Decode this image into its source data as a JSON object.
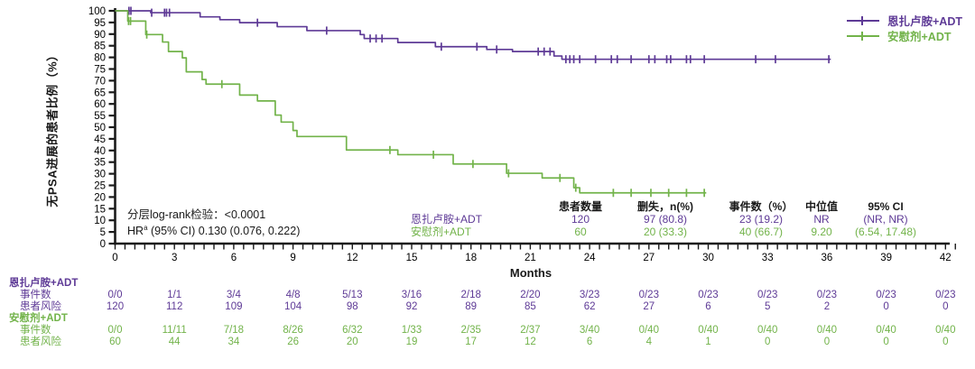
{
  "chart_data": {
    "type": "line",
    "subtype": "kaplan-meier-step",
    "title": "",
    "xlabel": "Months",
    "ylabel": "无PSA进展的患者比例（%）",
    "xlim": [
      0,
      42.5
    ],
    "ylim": [
      0,
      100
    ],
    "xtick_label_step": 3,
    "xtick_minor_step": 0.5,
    "ytick_step": 5,
    "grid": false,
    "legend_position": "top-right",
    "axis_color": "#1a1a1a",
    "series": [
      {
        "name": "恩扎卢胺+ADT",
        "color": "#5e3a96",
        "steps": [
          [
            0,
            100
          ],
          [
            1.8,
            99.2
          ],
          [
            4.3,
            97.4
          ],
          [
            5.3,
            96.2
          ],
          [
            6.3,
            94.9
          ],
          [
            8.2,
            93.2
          ],
          [
            9.7,
            91.5
          ],
          [
            12.4,
            89.8
          ],
          [
            12.6,
            88.1
          ],
          [
            14.3,
            86.4
          ],
          [
            16.2,
            84.6
          ],
          [
            18.8,
            83.4
          ],
          [
            20.1,
            82.5
          ],
          [
            22.2,
            80.6
          ],
          [
            22.6,
            79.2
          ],
          [
            36.2,
            79.2
          ]
        ],
        "censor_months": [
          0.7,
          0.8,
          1.85,
          2.5,
          2.6,
          2.75,
          7.2,
          10.7,
          12.9,
          13.2,
          13.5,
          16.5,
          18.3,
          19.3,
          21.4,
          21.7,
          22.0,
          22.8,
          23.0,
          23.2,
          23.5,
          24.3,
          25.1,
          25.4,
          26.1,
          27.0,
          27.3,
          27.9,
          28.1,
          28.9,
          29.1,
          29.8,
          32.4,
          33.4,
          36.1
        ]
      },
      {
        "name": "安慰剂+ADT",
        "color": "#72b34a",
        "steps": [
          [
            0,
            100
          ],
          [
            0.64,
            95.6
          ],
          [
            1.55,
            89.8
          ],
          [
            2.4,
            86.6
          ],
          [
            2.7,
            82.5
          ],
          [
            3.4,
            79.8
          ],
          [
            3.6,
            73.8
          ],
          [
            4.4,
            70.5
          ],
          [
            4.6,
            68.5
          ],
          [
            6.3,
            63.8
          ],
          [
            7.2,
            61.3
          ],
          [
            8.1,
            55.2
          ],
          [
            8.4,
            52.2
          ],
          [
            9.0,
            48.6
          ],
          [
            9.2,
            46.0
          ],
          [
            11.7,
            40.2
          ],
          [
            14.3,
            38.2
          ],
          [
            17.1,
            34.2
          ],
          [
            19.8,
            30.2
          ],
          [
            21.6,
            28.2
          ],
          [
            23.2,
            24.0
          ],
          [
            23.5,
            21.8
          ],
          [
            29.9,
            21.8
          ]
        ],
        "censor_months": [
          0.68,
          0.78,
          1.6,
          5.4,
          13.9,
          16.1,
          18.1,
          19.9,
          22.5,
          23.3,
          25.2,
          26.1,
          27.1,
          28.0,
          28.9,
          29.8
        ]
      }
    ],
    "stats": {
      "line1": "分层log-rank检验：<0.0001",
      "hr_label": "HR",
      "hr_sup": "a",
      "hr_rest": " (95% CI) 0.130 (0.076, 0.222)"
    },
    "summary_table": {
      "headers": [
        "患者数量",
        "删失，n(%)",
        "事件数（%）",
        "中位值",
        "95% CI"
      ],
      "rows": [
        {
          "label": "恩扎卢胺+ADT",
          "color": "#5e3a96",
          "values": [
            "120",
            "97 (80.8)",
            "23 (19.2)",
            "NR",
            "(NR, NR)"
          ]
        },
        {
          "label": "安慰剂+ADT",
          "color": "#72b34a",
          "values": [
            "60",
            "20 (33.3)",
            "40 (66.7)",
            "9.20",
            "(6.54, 17.48)"
          ]
        }
      ]
    },
    "risk_table": {
      "months": [
        0,
        3,
        6,
        9,
        12,
        15,
        18,
        21,
        24,
        27,
        30,
        33,
        36,
        39,
        42
      ],
      "row_labels": [
        "事件数",
        "患者风险"
      ],
      "groups": [
        {
          "name": "恩扎卢胺+ADT",
          "color": "#5e3a96",
          "events": [
            "0/0",
            "1/1",
            "3/4",
            "4/8",
            "5/13",
            "3/16",
            "2/18",
            "2/20",
            "3/23",
            "0/23",
            "0/23",
            "0/23",
            "0/23",
            "0/23",
            "0/23"
          ],
          "at_risk": [
            "120",
            "112",
            "109",
            "104",
            "98",
            "92",
            "89",
            "85",
            "62",
            "27",
            "6",
            "5",
            "2",
            "0",
            "0"
          ]
        },
        {
          "name": "安慰剂+ADT",
          "color": "#72b34a",
          "events": [
            "0/0",
            "11/11",
            "7/18",
            "8/26",
            "6/32",
            "1/33",
            "2/35",
            "2/37",
            "3/40",
            "0/40",
            "0/40",
            "0/40",
            "0/40",
            "0/40",
            "0/40"
          ],
          "at_risk": [
            "60",
            "44",
            "34",
            "26",
            "20",
            "19",
            "17",
            "12",
            "6",
            "4",
            "1",
            "0",
            "0",
            "0",
            "0"
          ]
        }
      ]
    }
  }
}
